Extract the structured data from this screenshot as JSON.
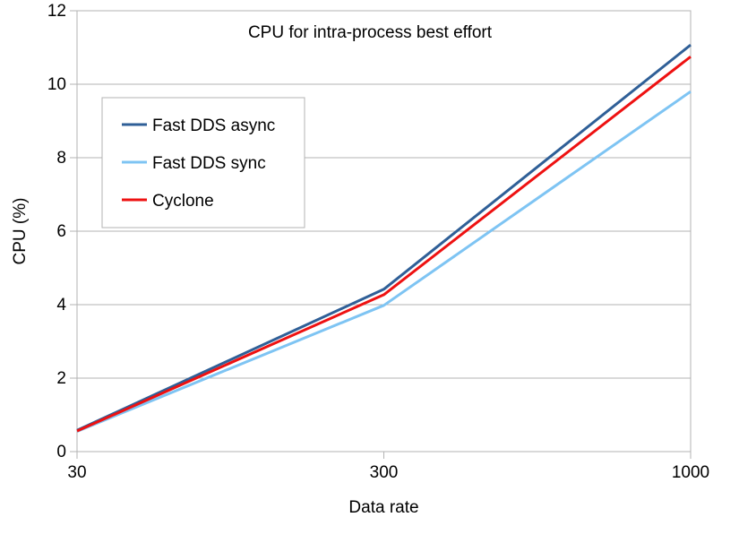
{
  "chart_data": {
    "type": "line",
    "title": "CPU for intra-process best effort",
    "xlabel": "Data rate",
    "ylabel": "CPU (%)",
    "categories": [
      "30",
      "300",
      "1000"
    ],
    "ylim": [
      0,
      12
    ],
    "yticks": [
      "0",
      "2",
      "4",
      "6",
      "8",
      "10",
      "12"
    ],
    "grid": true,
    "legend_position": "top-left",
    "series": [
      {
        "name": "Fast DDS async",
        "color": "#2f5f97",
        "values": [
          0.58,
          4.42,
          11.07
        ]
      },
      {
        "name": "Fast DDS sync",
        "color": "#7ec4f3",
        "values": [
          0.55,
          3.98,
          9.8
        ]
      },
      {
        "name": "Cyclone",
        "color": "#ee1111",
        "values": [
          0.56,
          4.27,
          10.75
        ]
      }
    ]
  }
}
